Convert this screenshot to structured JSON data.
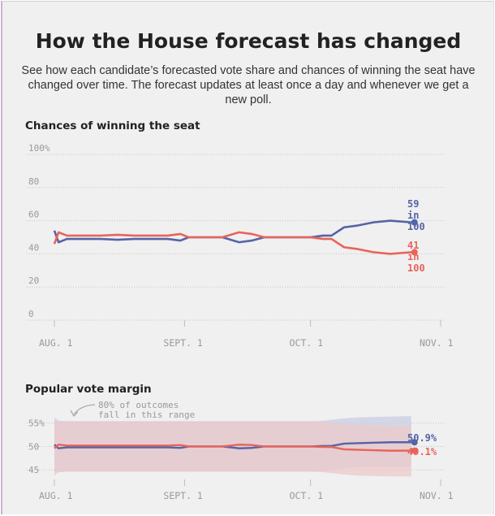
{
  "header": {
    "title": "How the House forecast has changed",
    "subtitle": "See how each candidate’s forecasted vote share and chances of winning the seat have changed over time. The forecast updates at least once a day and whenever we get a new poll."
  },
  "colors": {
    "dem": "#5564a6",
    "rep": "#e8645a",
    "band_dem": "#c9cde3",
    "band_rep": "#ecc9c9",
    "grid": "#c4c4c4",
    "text": "#999999"
  },
  "chart_data": [
    {
      "type": "line",
      "title": "Chances of winning the seat",
      "x_ticks": [
        "AUG. 1",
        "SEPT. 1",
        "OCT. 1",
        "NOV. 1"
      ],
      "y_ticks": [
        "100%",
        "80",
        "60",
        "40",
        "20",
        "0"
      ],
      "ylim": [
        0,
        100
      ],
      "x": [
        "Aug 1",
        "Aug 2",
        "Aug 4",
        "Aug 8",
        "Aug 12",
        "Aug 16",
        "Aug 20",
        "Aug 24",
        "Aug 28",
        "Aug 31",
        "Sep 2",
        "Sep 6",
        "Sep 10",
        "Sep 14",
        "Sep 17",
        "Sep 20",
        "Sep 24",
        "Sep 28",
        "Oct 1",
        "Oct 4",
        "Oct 6",
        "Oct 9",
        "Oct 12",
        "Oct 16",
        "Oct 20",
        "Oct 25"
      ],
      "series": [
        {
          "values": [
            54,
            47,
            49,
            49,
            49,
            48.5,
            49,
            49,
            49,
            48,
            50,
            50,
            50,
            47,
            48,
            50,
            50,
            50,
            50,
            51,
            51,
            56,
            57,
            59,
            60,
            59
          ]
        },
        {
          "values": [
            46,
            53,
            51,
            51,
            51,
            51.5,
            51,
            51,
            51,
            52,
            50,
            50,
            50,
            53,
            52,
            50,
            50,
            50,
            50,
            49,
            49,
            44,
            43,
            41,
            40,
            41
          ]
        }
      ],
      "end_labels": [
        {
          "lines": [
            "59",
            "in",
            "100"
          ]
        },
        {
          "lines": [
            "41",
            "in",
            "100"
          ]
        }
      ]
    },
    {
      "type": "area",
      "title": "Popular vote margin",
      "annotation": [
        "80% of outcomes",
        "fall in this range"
      ],
      "x_ticks": [
        "AUG. 1",
        "SEPT. 1",
        "OCT. 1",
        "NOV. 1"
      ],
      "y_ticks": [
        "55%",
        "50",
        "45"
      ],
      "ylim": [
        44,
        56.5
      ],
      "x": [
        "Aug 1",
        "Aug 2",
        "Aug 4",
        "Aug 8",
        "Aug 12",
        "Aug 16",
        "Aug 20",
        "Aug 24",
        "Aug 28",
        "Aug 31",
        "Sep 2",
        "Sep 6",
        "Sep 10",
        "Sep 14",
        "Sep 17",
        "Sep 20",
        "Sep 24",
        "Sep 28",
        "Oct 1",
        "Oct 4",
        "Oct 6",
        "Oct 9",
        "Oct 12",
        "Oct 16",
        "Oct 20",
        "Oct 25"
      ],
      "series": [
        {
          "values": [
            50.4,
            49.6,
            49.8,
            49.8,
            49.8,
            49.8,
            49.8,
            49.8,
            49.8,
            49.7,
            50.0,
            50.0,
            50.0,
            49.6,
            49.7,
            50.0,
            50.0,
            50.0,
            50.0,
            50.1,
            50.1,
            50.6,
            50.7,
            50.8,
            50.9,
            50.9
          ],
          "band": [
            [
              44.5,
              56.2
            ],
            [
              44.6,
              55.5
            ],
            [
              44.6,
              55.4
            ],
            [
              44.6,
              55.4
            ],
            [
              44.6,
              55.4
            ],
            [
              44.6,
              55.4
            ],
            [
              44.6,
              55.4
            ],
            [
              44.6,
              55.4
            ],
            [
              44.6,
              55.4
            ],
            [
              44.6,
              55.4
            ],
            [
              44.6,
              55.4
            ],
            [
              44.6,
              55.4
            ],
            [
              44.6,
              55.4
            ],
            [
              44.6,
              55.4
            ],
            [
              44.6,
              55.4
            ],
            [
              44.6,
              55.4
            ],
            [
              44.6,
              55.4
            ],
            [
              44.6,
              55.4
            ],
            [
              44.6,
              55.4
            ],
            [
              44.7,
              55.5
            ],
            [
              44.9,
              55.7
            ],
            [
              45.3,
              56.0
            ],
            [
              45.5,
              56.2
            ],
            [
              45.6,
              56.3
            ],
            [
              45.6,
              56.4
            ],
            [
              45.6,
              56.5
            ]
          ]
        },
        {
          "values": [
            49.6,
            50.4,
            50.2,
            50.2,
            50.2,
            50.2,
            50.2,
            50.2,
            50.2,
            50.3,
            50.0,
            50.0,
            50.0,
            50.4,
            50.3,
            50.0,
            50.0,
            50.0,
            50.0,
            49.9,
            49.9,
            49.4,
            49.3,
            49.2,
            49.1,
            49.1
          ],
          "band": [
            [
              43.8,
              55.5
            ],
            [
              44.5,
              55.4
            ],
            [
              44.6,
              55.4
            ],
            [
              44.6,
              55.4
            ],
            [
              44.6,
              55.4
            ],
            [
              44.6,
              55.4
            ],
            [
              44.6,
              55.4
            ],
            [
              44.6,
              55.4
            ],
            [
              44.6,
              55.4
            ],
            [
              44.6,
              55.4
            ],
            [
              44.6,
              55.4
            ],
            [
              44.6,
              55.4
            ],
            [
              44.6,
              55.4
            ],
            [
              44.6,
              55.4
            ],
            [
              44.6,
              55.4
            ],
            [
              44.6,
              55.4
            ],
            [
              44.6,
              55.4
            ],
            [
              44.6,
              55.4
            ],
            [
              44.6,
              55.4
            ],
            [
              44.5,
              55.3
            ],
            [
              44.3,
              55.1
            ],
            [
              44.0,
              54.8
            ],
            [
              43.8,
              54.6
            ],
            [
              43.7,
              54.5
            ],
            [
              43.6,
              54.4
            ],
            [
              43.6,
              54.4
            ]
          ]
        }
      ],
      "end_labels": [
        "50.9%",
        "49.1%"
      ]
    }
  ]
}
